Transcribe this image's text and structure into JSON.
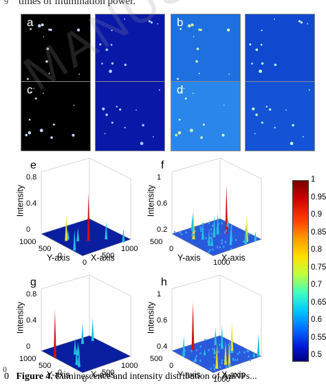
{
  "top_text": "times of illumination power.",
  "bottom_caption": {
    "line_number": "0",
    "label": "Figure 4.",
    "text": " Luminescence and intensity distribution of AuNPs..."
  },
  "line_numbers": [
    "9",
    "0"
  ],
  "watermark": "MANUS",
  "image_panels": [
    {
      "letter": "a",
      "bg": "#000000",
      "dots": "#c8d8ff"
    },
    {
      "letter": "",
      "bg": "#0a18a8",
      "dots": "#9fd6ff"
    },
    {
      "letter": "b",
      "bg": "#1e6fe0",
      "dots": "#d8ffb0"
    },
    {
      "letter": "",
      "bg": "#1048d0",
      "dots": "#c8ffd8"
    },
    {
      "letter": "c",
      "bg": "#000000",
      "dots": "#c8d8ff"
    },
    {
      "letter": "",
      "bg": "#0a18a8",
      "dots": "#9fd6ff"
    },
    {
      "letter": "d",
      "bg": "#2a86ea",
      "dots": "#d8ffb0"
    },
    {
      "letter": "",
      "bg": "#1452d6",
      "dots": "#c8ffd8"
    }
  ],
  "plots": [
    {
      "letter": "e",
      "zlabel": "Intensity",
      "xlabel": "X-axis",
      "ylabel": "Y-axis",
      "zticks": [
        "0.8",
        "0.4",
        "0"
      ],
      "xticks": [
        "0",
        "500",
        "1000"
      ],
      "yticks": [
        "1000",
        "500",
        "0"
      ]
    },
    {
      "letter": "f",
      "zlabel": "Intensity",
      "xlabel": "X-axis",
      "ylabel": "Y-axis",
      "zticks": [
        "1",
        "0.6",
        "0.2"
      ],
      "xticks": [
        "1000"
      ],
      "yticks": [
        "500",
        "0"
      ]
    },
    {
      "letter": "g",
      "zlabel": "Intensity",
      "xlabel": "X-axis",
      "ylabel": "Y-axis",
      "zticks": [
        "0.8",
        "0.4",
        "0"
      ],
      "xticks": [
        "0",
        "500",
        "1000"
      ],
      "yticks": [
        "1000",
        "500",
        "0"
      ]
    },
    {
      "letter": "h",
      "zlabel": "Intensity",
      "xlabel": "X-axis",
      "ylabel": "Y-axis",
      "zticks": [
        "1",
        "0.6",
        "0.4"
      ],
      "xticks": [
        "1000"
      ],
      "yticks": [
        "500",
        "0"
      ]
    }
  ],
  "colorbar": {
    "ticks": [
      "1",
      "0.95",
      "0.9",
      "0.85",
      "0.8",
      "0.75",
      "0.7",
      "0.65",
      "0.6",
      "0.55",
      "0.5"
    ],
    "colors": [
      "#7a0000",
      "#d00000",
      "#ff4000",
      "#ff9a00",
      "#ffe000",
      "#bfff40",
      "#40ffbf",
      "#00c8ff",
      "#0070ff",
      "#0018d8",
      "#000080"
    ]
  }
}
